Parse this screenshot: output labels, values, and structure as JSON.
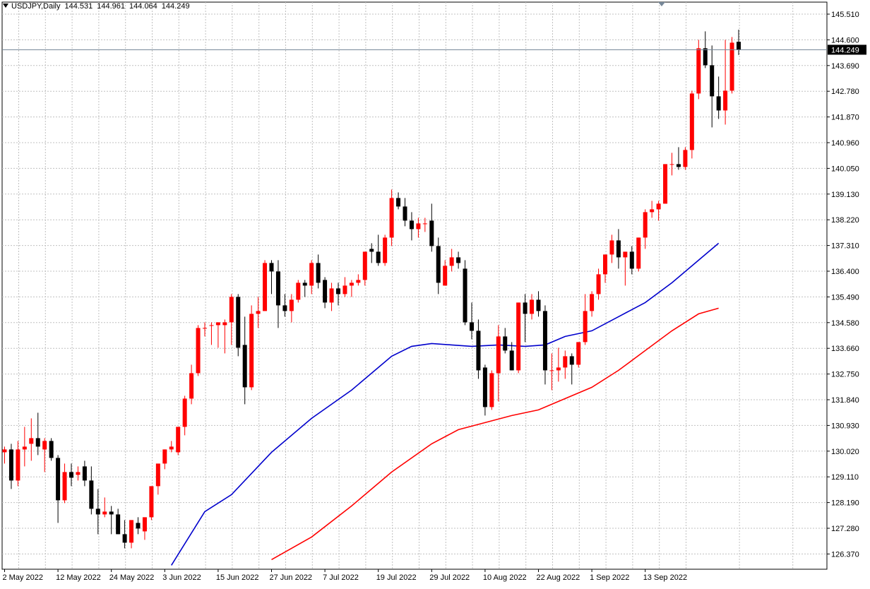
{
  "header": {
    "symbol_timeframe": "USDJPY,Daily",
    "open": "144.531",
    "high": "144.961",
    "low": "144.064",
    "close": "144.249"
  },
  "price_label": "144.249",
  "colors": {
    "bull": "#ff0000",
    "bear": "#000000",
    "ma_fast": "#0000cc",
    "ma_slow": "#ff0000",
    "grid": "#c0c0c0",
    "current_line": "#778899"
  },
  "chart_data": {
    "type": "candlestick",
    "y_ticks": [
      "145.510",
      "144.600",
      "143.690",
      "142.780",
      "141.870",
      "140.960",
      "140.050",
      "139.130",
      "138.220",
      "137.310",
      "136.400",
      "135.490",
      "134.580",
      "133.660",
      "132.750",
      "131.840",
      "130.930",
      "130.020",
      "129.110",
      "128.190",
      "127.280",
      "126.370"
    ],
    "x_ticks": [
      {
        "index": 0,
        "label": "2 May 2022"
      },
      {
        "index": 8,
        "label": "12 May 2022"
      },
      {
        "index": 16,
        "label": "24 May 2022"
      },
      {
        "index": 24,
        "label": "3 Jun 2022"
      },
      {
        "index": 32,
        "label": "15 Jun 2022"
      },
      {
        "index": 40,
        "label": "27 Jun 2022"
      },
      {
        "index": 48,
        "label": "7 Jul 2022"
      },
      {
        "index": 56,
        "label": "19 Jul 2022"
      },
      {
        "index": 64,
        "label": "29 Jul 2022"
      },
      {
        "index": 72,
        "label": "10 Aug 2022"
      },
      {
        "index": 80,
        "label": "22 Aug 2022"
      },
      {
        "index": 88,
        "label": "1 Sep 2022"
      },
      {
        "index": 96,
        "label": "13 Sep 2022"
      }
    ],
    "current_price": 144.249,
    "ohlc": [
      [
        130.0,
        130.2,
        129.6,
        130.1
      ],
      [
        130.1,
        130.3,
        128.7,
        129.0
      ],
      [
        129.0,
        130.4,
        128.8,
        130.1
      ],
      [
        130.1,
        130.9,
        129.5,
        130.2
      ],
      [
        130.3,
        131.2,
        129.7,
        130.5
      ],
      [
        130.5,
        131.4,
        129.9,
        130.2
      ],
      [
        130.1,
        130.5,
        129.3,
        130.4
      ],
      [
        130.4,
        130.5,
        129.7,
        129.8
      ],
      [
        129.8,
        129.9,
        127.5,
        128.3
      ],
      [
        128.3,
        129.6,
        128.2,
        129.3
      ],
      [
        129.3,
        129.6,
        128.8,
        129.1
      ],
      [
        129.2,
        129.5,
        129.0,
        129.3
      ],
      [
        129.5,
        129.7,
        128.8,
        129.0
      ],
      [
        129.0,
        129.5,
        127.8,
        128.0
      ],
      [
        128.0,
        128.7,
        127.1,
        127.8
      ],
      [
        127.8,
        128.4,
        127.7,
        127.9
      ],
      [
        127.9,
        128.1,
        127.1,
        127.8
      ],
      [
        127.8,
        128.0,
        127.1,
        127.1
      ],
      [
        127.1,
        127.6,
        126.6,
        126.8
      ],
      [
        126.8,
        127.6,
        126.6,
        127.6
      ],
      [
        127.5,
        127.7,
        127.1,
        127.3
      ],
      [
        127.2,
        127.7,
        126.9,
        127.7
      ],
      [
        127.7,
        128.8,
        127.6,
        128.8
      ],
      [
        128.8,
        129.5,
        128.5,
        129.6
      ],
      [
        129.6,
        130.1,
        129.4,
        130.1
      ],
      [
        130.1,
        130.4,
        130.0,
        130.2
      ],
      [
        130.0,
        130.9,
        129.9,
        130.9
      ],
      [
        130.9,
        132.0,
        130.6,
        131.9
      ],
      [
        131.9,
        133.1,
        131.7,
        132.8
      ],
      [
        132.8,
        134.5,
        132.7,
        134.4
      ],
      [
        134.4,
        134.6,
        134.1,
        134.4
      ],
      [
        134.5,
        134.6,
        133.8,
        134.5
      ],
      [
        134.5,
        134.6,
        133.7,
        134.6
      ],
      [
        134.5,
        134.7,
        133.5,
        134.6
      ],
      [
        134.6,
        135.6,
        133.8,
        135.5
      ],
      [
        135.5,
        135.6,
        133.4,
        133.7
      ],
      [
        133.8,
        134.8,
        131.7,
        132.3
      ],
      [
        132.3,
        135.2,
        132.2,
        134.9
      ],
      [
        134.9,
        135.5,
        134.4,
        135.0
      ],
      [
        135.0,
        136.8,
        135.0,
        136.7
      ],
      [
        136.7,
        136.8,
        135.6,
        136.4
      ],
      [
        136.4,
        136.8,
        134.4,
        135.2
      ],
      [
        135.2,
        135.6,
        134.8,
        135.0
      ],
      [
        135.0,
        135.6,
        134.6,
        135.4
      ],
      [
        135.4,
        136.1,
        135.3,
        136.0
      ],
      [
        136.0,
        136.1,
        135.5,
        135.9
      ],
      [
        135.9,
        136.8,
        135.6,
        136.7
      ],
      [
        136.7,
        137.0,
        135.8,
        136.0
      ],
      [
        136.1,
        136.2,
        135.1,
        135.3
      ],
      [
        135.3,
        136.0,
        135.0,
        135.8
      ],
      [
        135.8,
        136.0,
        135.2,
        135.6
      ],
      [
        135.6,
        136.2,
        135.5,
        135.9
      ],
      [
        135.9,
        136.1,
        135.5,
        136.0
      ],
      [
        136.0,
        136.3,
        135.9,
        136.1
      ],
      [
        136.1,
        137.1,
        135.9,
        137.1
      ],
      [
        137.2,
        137.4,
        136.7,
        137.1
      ],
      [
        137.1,
        137.7,
        136.6,
        136.7
      ],
      [
        136.7,
        137.7,
        136.6,
        137.6
      ],
      [
        137.6,
        139.3,
        137.3,
        139.0
      ],
      [
        139.0,
        139.2,
        138.6,
        138.7
      ],
      [
        138.7,
        139.0,
        138.0,
        138.2
      ],
      [
        138.2,
        138.5,
        137.5,
        137.9
      ],
      [
        137.9,
        138.3,
        137.6,
        138.1
      ],
      [
        138.1,
        138.3,
        137.8,
        138.1
      ],
      [
        138.2,
        138.8,
        137.1,
        137.3
      ],
      [
        137.3,
        137.6,
        135.6,
        136.0
      ],
      [
        135.9,
        136.8,
        135.9,
        136.6
      ],
      [
        136.6,
        137.2,
        136.4,
        136.9
      ],
      [
        136.9,
        137.1,
        136.5,
        136.7
      ],
      [
        136.5,
        136.8,
        134.5,
        134.6
      ],
      [
        134.6,
        135.3,
        134.0,
        134.3
      ],
      [
        134.3,
        134.7,
        132.6,
        132.9
      ],
      [
        133.0,
        133.1,
        131.3,
        131.6
      ],
      [
        131.6,
        132.9,
        131.5,
        132.8
      ],
      [
        132.8,
        134.5,
        131.8,
        134.1
      ],
      [
        134.1,
        134.4,
        133.5,
        133.6
      ],
      [
        133.6,
        133.9,
        132.9,
        132.9
      ],
      [
        132.9,
        135.3,
        132.8,
        135.3
      ],
      [
        135.3,
        135.6,
        133.9,
        134.9
      ],
      [
        134.9,
        135.6,
        134.7,
        135.4
      ],
      [
        135.4,
        135.7,
        134.8,
        135.0
      ],
      [
        135.0,
        135.2,
        132.4,
        132.9
      ],
      [
        132.9,
        133.5,
        132.2,
        132.9
      ],
      [
        132.9,
        133.7,
        132.5,
        133.0
      ],
      [
        133.0,
        133.6,
        132.6,
        133.4
      ],
      [
        133.4,
        133.5,
        132.4,
        133.1
      ],
      [
        133.1,
        133.9,
        133.0,
        133.9
      ],
      [
        133.9,
        135.6,
        133.8,
        135.0
      ],
      [
        135.0,
        135.7,
        134.8,
        135.6
      ],
      [
        135.6,
        136.5,
        135.4,
        136.3
      ],
      [
        136.3,
        137.0,
        136.0,
        137.0
      ],
      [
        137.0,
        137.7,
        136.7,
        137.5
      ],
      [
        137.5,
        137.9,
        136.5,
        136.9
      ],
      [
        136.9,
        137.1,
        135.9,
        137.1
      ],
      [
        137.1,
        137.3,
        136.3,
        136.5
      ],
      [
        136.5,
        137.6,
        136.4,
        137.6
      ],
      [
        137.6,
        138.6,
        137.2,
        138.5
      ],
      [
        138.5,
        138.9,
        138.3,
        138.6
      ],
      [
        138.6,
        138.9,
        138.2,
        138.8
      ],
      [
        138.8,
        140.2,
        138.8,
        140.2
      ],
      [
        140.2,
        140.6,
        139.8,
        140.2
      ],
      [
        140.2,
        140.8,
        140.0,
        140.1
      ],
      [
        140.1,
        140.8,
        140.0,
        140.7
      ],
      [
        140.7,
        142.8,
        140.4,
        142.7
      ],
      [
        142.7,
        144.6,
        142.5,
        144.3
      ],
      [
        144.3,
        144.9,
        143.6,
        143.7
      ],
      [
        143.7,
        144.4,
        141.5,
        142.6
      ],
      [
        142.6,
        143.3,
        141.8,
        142.1
      ],
      [
        142.1,
        144.6,
        141.6,
        142.8
      ],
      [
        142.8,
        144.7,
        142.7,
        144.5
      ],
      [
        144.531,
        144.961,
        144.064,
        144.249
      ]
    ],
    "ma_fast": [
      [
        25,
        126.0
      ],
      [
        30,
        127.9
      ],
      [
        34,
        128.5
      ],
      [
        40,
        130.0
      ],
      [
        46,
        131.2
      ],
      [
        52,
        132.2
      ],
      [
        58,
        133.4
      ],
      [
        61,
        133.75
      ],
      [
        64,
        133.85
      ],
      [
        67,
        133.8
      ],
      [
        70,
        133.75
      ],
      [
        74,
        133.8
      ],
      [
        78,
        133.75
      ],
      [
        81,
        133.8
      ],
      [
        84,
        134.1
      ],
      [
        88,
        134.3
      ],
      [
        92,
        134.8
      ],
      [
        96,
        135.3
      ],
      [
        100,
        136.0
      ],
      [
        104,
        136.8
      ],
      [
        107,
        137.4
      ]
    ],
    "ma_slow": [
      [
        40,
        126.2
      ],
      [
        46,
        127.0
      ],
      [
        52,
        128.1
      ],
      [
        58,
        129.3
      ],
      [
        64,
        130.3
      ],
      [
        68,
        130.8
      ],
      [
        72,
        131.05
      ],
      [
        76,
        131.3
      ],
      [
        80,
        131.5
      ],
      [
        84,
        131.9
      ],
      [
        88,
        132.3
      ],
      [
        92,
        132.9
      ],
      [
        96,
        133.6
      ],
      [
        100,
        134.3
      ],
      [
        104,
        134.9
      ],
      [
        107,
        135.1
      ]
    ]
  }
}
